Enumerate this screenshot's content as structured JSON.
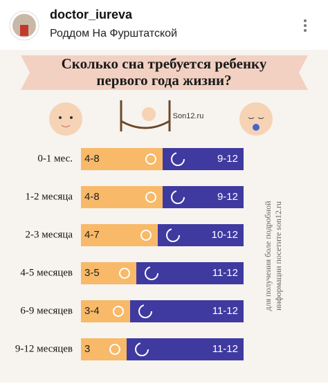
{
  "header": {
    "username": "doctor_iureva",
    "subtitle": "Роддом На Фурштатской"
  },
  "infographic": {
    "title": [
      "Сколько сна требуется  ребенку",
      "первого года жизни?"
    ],
    "logo": "Son12.ru",
    "side_note": [
      "для получения боле подробной",
      "информации посетите son12.ru"
    ],
    "rows": [
      {
        "age": "0-1 мес.",
        "day": "4-8",
        "night": "9-12"
      },
      {
        "age": "1-2 месяца",
        "day": "4-8",
        "night": "9-12"
      },
      {
        "age": "2-3 месяца",
        "day": "4-7",
        "night": "10-12"
      },
      {
        "age": "4-5 месяцев",
        "day": "3-5",
        "night": "11-12"
      },
      {
        "age": "6-9 месяцев",
        "day": "3-4",
        "night": "11-12"
      },
      {
        "age": "9-12 месяцев",
        "day": "3",
        "night": "11-12"
      }
    ]
  }
}
